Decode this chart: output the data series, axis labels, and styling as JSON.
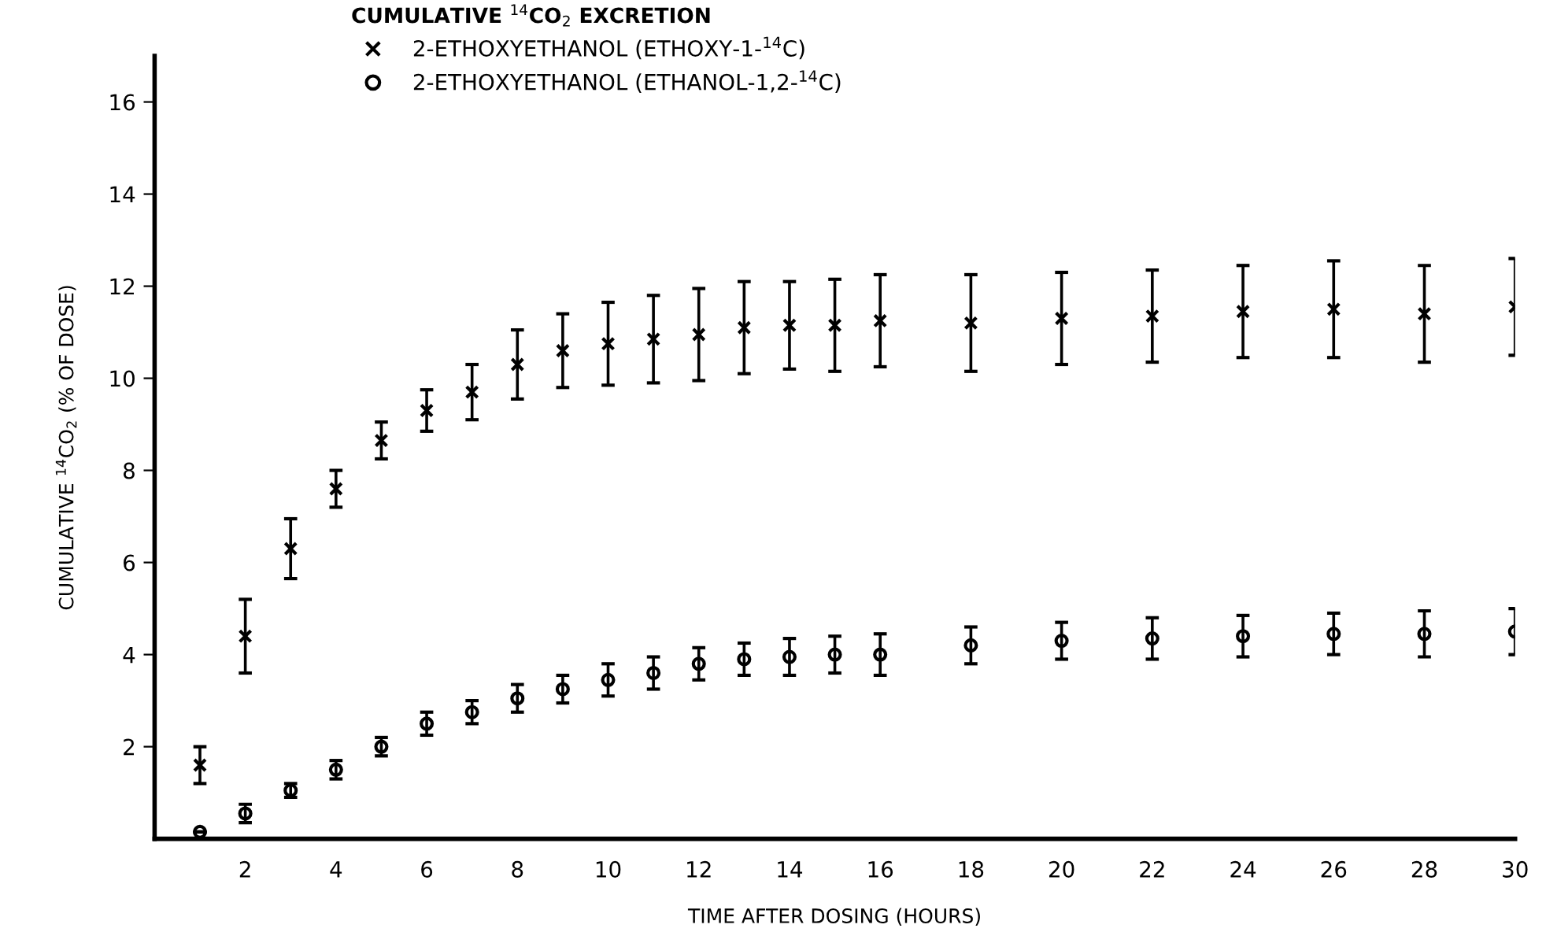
{
  "chart_data": {
    "type": "scatter",
    "xlabel": "TIME AFTER DOSING (HOURS)",
    "ylabel": "CUMULATIVE $^{14}$CO$_{2}$ (% OF DOSE)",
    "legend_title": "CUMULATIVE $^{14}$CO$_{2}$ EXCRETION",
    "x": [
      1,
      2,
      3,
      4,
      5,
      6,
      7,
      8,
      9,
      10,
      11,
      12,
      13,
      14,
      15,
      16,
      18,
      20,
      22,
      24,
      26,
      28,
      30
    ],
    "series": [
      {
        "name": "2-ETHOXYETHANOL (ETHOXY-1-$^{14}$C)",
        "color": "#000000",
        "marker": "cross",
        "values": [
          1.6,
          4.4,
          6.3,
          7.6,
          8.65,
          9.3,
          9.7,
          10.3,
          10.6,
          10.75,
          10.85,
          10.95,
          11.1,
          11.15,
          11.15,
          11.25,
          11.2,
          11.3,
          11.35,
          11.45,
          11.5,
          11.4,
          11.55
        ],
        "errors": [
          0.4,
          0.8,
          0.65,
          0.4,
          0.4,
          0.45,
          0.6,
          0.75,
          0.8,
          0.9,
          0.95,
          1.0,
          1.0,
          0.95,
          1.0,
          1.0,
          1.05,
          1.0,
          1.0,
          1.0,
          1.05,
          1.05,
          1.05
        ]
      },
      {
        "name": "2-ETHOXYETHANOL (ETHANOL-1,2-$^{14}$C)",
        "color": "#000000",
        "marker": "circle",
        "values": [
          0.15,
          0.55,
          1.05,
          1.5,
          2.0,
          2.5,
          2.75,
          3.05,
          3.25,
          3.45,
          3.6,
          3.8,
          3.9,
          3.95,
          4.0,
          4.0,
          4.2,
          4.3,
          4.35,
          4.4,
          4.45,
          4.45,
          4.5
        ],
        "errors": [
          null,
          0.2,
          0.15,
          0.2,
          0.2,
          0.25,
          0.25,
          0.3,
          0.3,
          0.35,
          0.35,
          0.35,
          0.35,
          0.4,
          0.4,
          0.45,
          0.4,
          0.4,
          0.45,
          0.45,
          0.45,
          0.5,
          0.5
        ]
      }
    ],
    "xlim": [
      0,
      30
    ],
    "xticks": [
      2,
      4,
      6,
      8,
      10,
      12,
      14,
      16,
      18,
      20,
      22,
      24,
      26,
      28,
      30
    ],
    "ylim": [
      0,
      17
    ],
    "yticks": [
      2,
      4,
      6,
      8,
      10,
      12,
      14,
      16
    ],
    "grid": false,
    "legend": "top left"
  }
}
